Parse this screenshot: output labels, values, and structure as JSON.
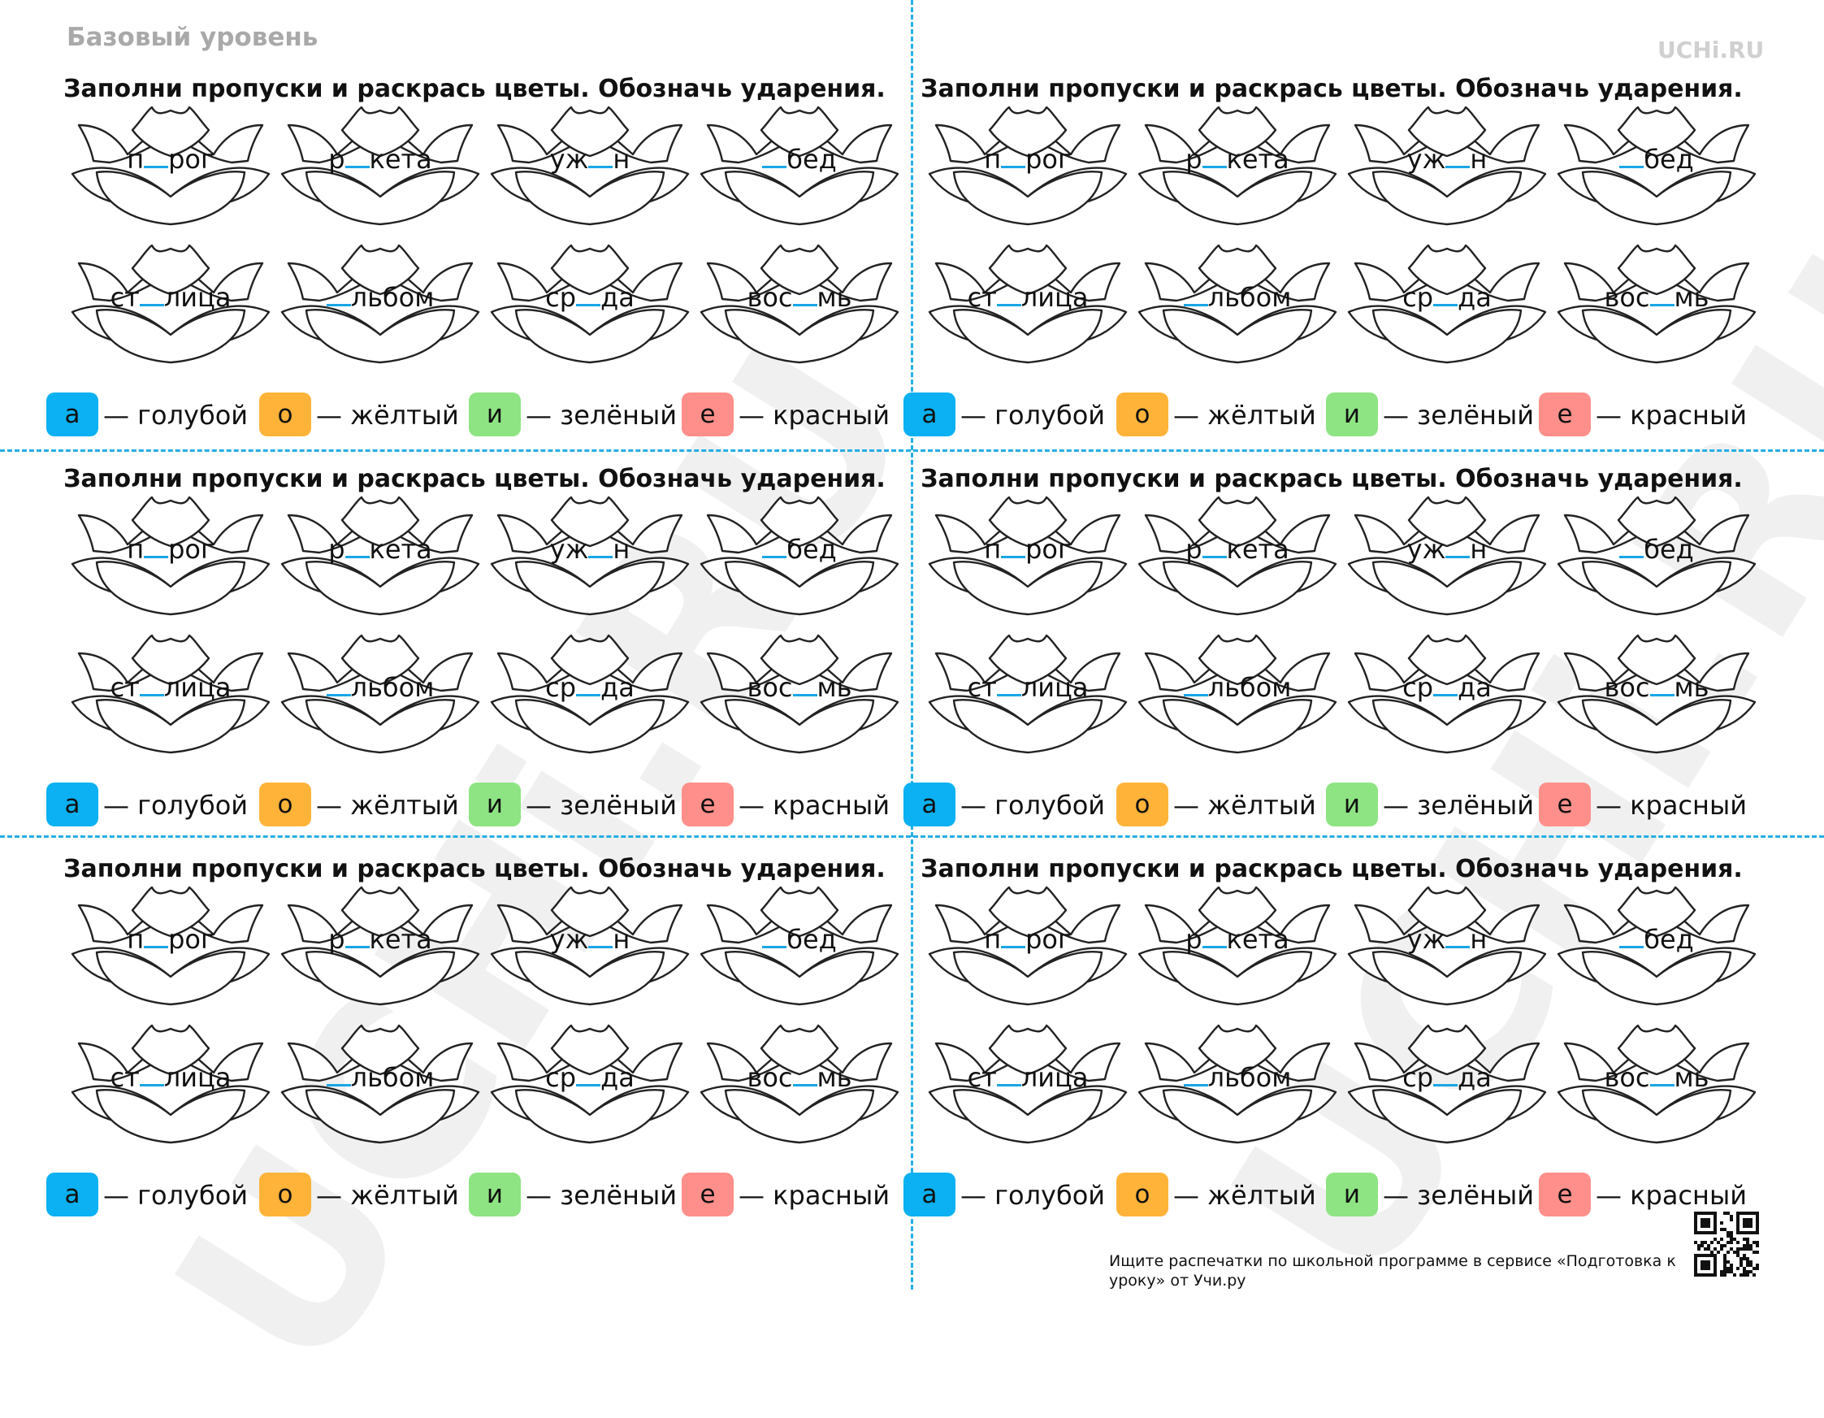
{
  "header": {
    "level_label": "Базовый уровень",
    "brand_logo": "UCHi.RU",
    "watermark_text": "UCHi.RU"
  },
  "colors": {
    "cut_line": "#25aee5",
    "blank_underline": "#1aa6e6",
    "flower_outline": "#222222"
  },
  "cards": [
    {
      "id": 1
    },
    {
      "id": 2
    },
    {
      "id": 3
    },
    {
      "id": 4
    },
    {
      "id": 5
    },
    {
      "id": 6
    }
  ],
  "card_template": {
    "title": "Заполни пропуски и раскрась цветы. Обозначь ударения.",
    "words": [
      {
        "pre": "п",
        "post": "рог"
      },
      {
        "pre": "р",
        "post": "кета"
      },
      {
        "pre": "уж",
        "post": "н"
      },
      {
        "pre": "",
        "post": "бед"
      },
      {
        "pre": "ст",
        "post": "лица"
      },
      {
        "pre": "",
        "post": "льбом"
      },
      {
        "pre": "ср",
        "post": "да"
      },
      {
        "pre": "вос",
        "post": "мь"
      }
    ],
    "legend": [
      {
        "letter": "а",
        "text": "— голубой",
        "color": "#0bb1f2"
      },
      {
        "letter": "о",
        "text": "— жёлтый",
        "color": "#ffb339"
      },
      {
        "letter": "и",
        "text": "— зелёный",
        "color": "#8ee483"
      },
      {
        "letter": "е",
        "text": "— красный",
        "color": "#ff8f8a"
      }
    ]
  },
  "footer": {
    "text": "Ищите распечатки по школьной программе в сервисе «Подготовка к уроку» от Учи.ру",
    "qr_icon": "qr-code-icon"
  }
}
